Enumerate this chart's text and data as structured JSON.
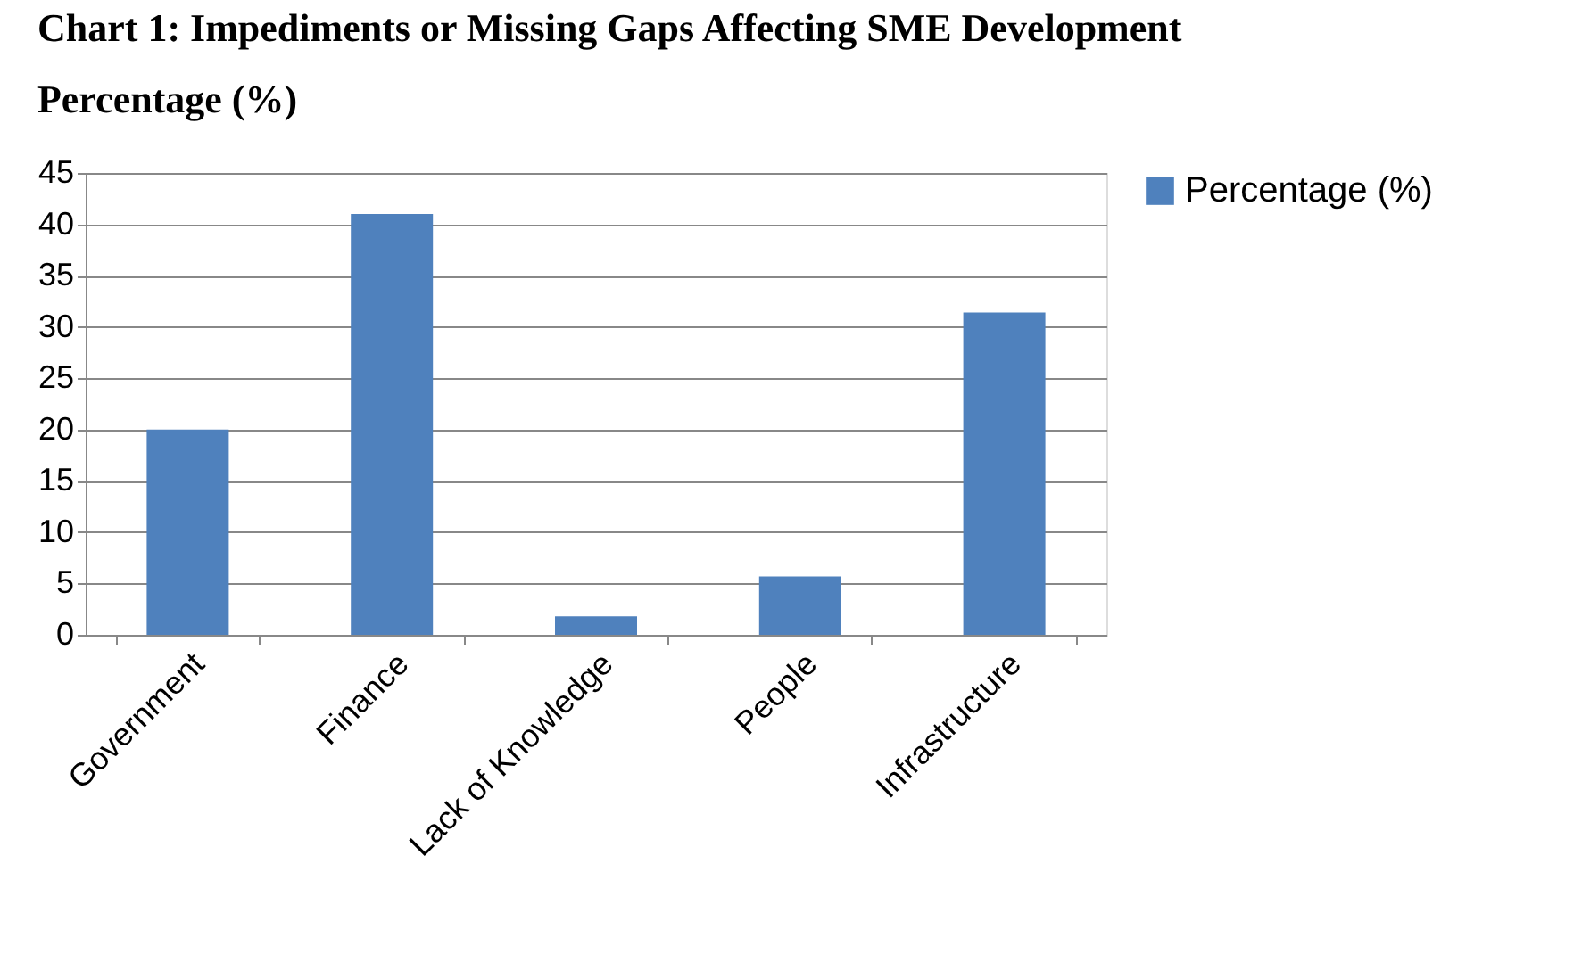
{
  "chart_data": {
    "type": "bar",
    "title": "Chart 1: Impediments or Missing Gaps Affecting SME Development",
    "subtitle": "Percentage (%)",
    "categories": [
      "Government",
      "Finance",
      "Lack of Knowledge",
      "People",
      "Infrastructure"
    ],
    "series": [
      {
        "name": "Percentage (%)",
        "color": "#4f81bd",
        "values": [
          20,
          41,
          1.8,
          5.7,
          31.4
        ]
      }
    ],
    "ylim": [
      0,
      45
    ],
    "yticks": [
      0,
      5,
      10,
      15,
      20,
      25,
      30,
      35,
      40,
      45
    ],
    "grid": "y",
    "legend": "right"
  }
}
